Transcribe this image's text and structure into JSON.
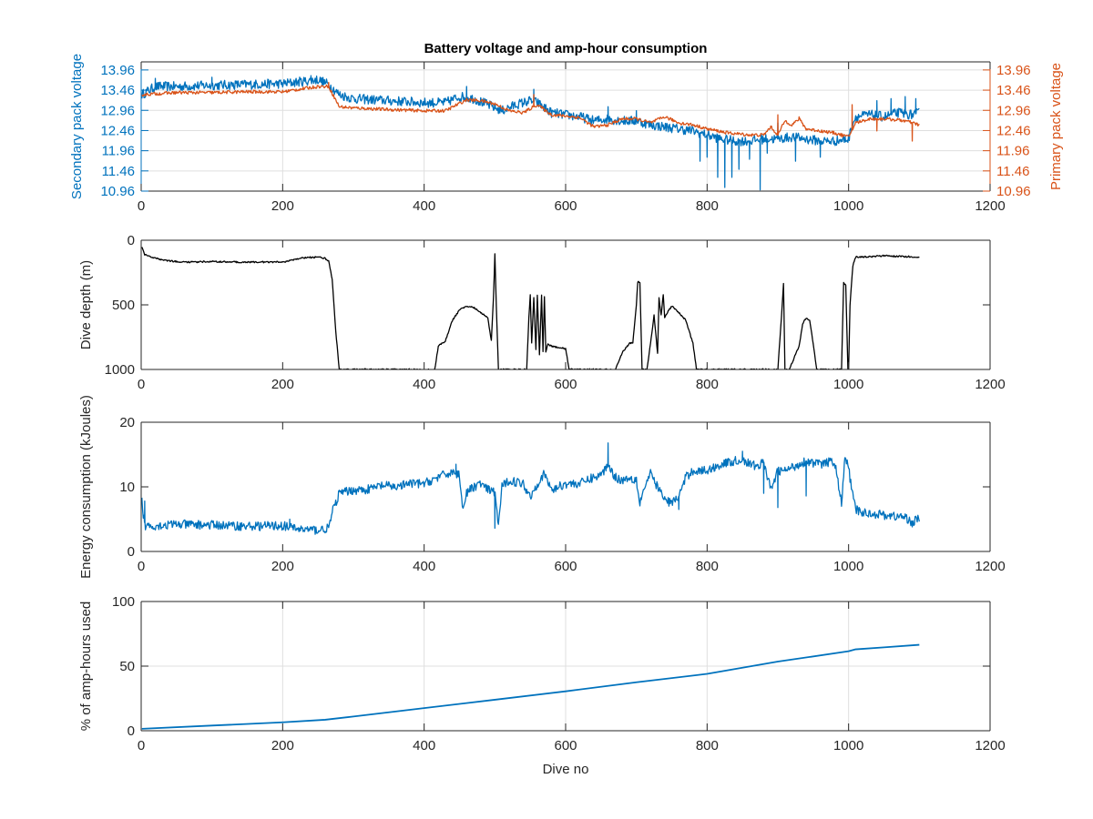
{
  "chart_data": [
    {
      "type": "line",
      "title": "Battery voltage and amp-hour consumption",
      "xlabel": "",
      "ylabel": "Secondary pack voltage",
      "ylabel_right": "Primary pack voltage",
      "xlim": [
        0,
        1200
      ],
      "ylim": [
        10.96,
        14.16
      ],
      "ylim_right": [
        10.96,
        14.16
      ],
      "xticks": [
        "0",
        "200",
        "400",
        "600",
        "800",
        "1000",
        "1200"
      ],
      "yticks": [
        "10.96",
        "11.46",
        "11.96",
        "12.46",
        "12.96",
        "13.46",
        "13.96"
      ],
      "yticks_right": [
        "10.96",
        "11.46",
        "11.96",
        "12.46",
        "12.96",
        "13.46",
        "13.96"
      ],
      "grid": true,
      "colors": {
        "left": "#0072BD",
        "right": "#D95319"
      },
      "series": [
        {
          "color": "#0072BD",
          "axis": "left",
          "x": [
            1,
            20,
            50,
            100,
            150,
            200,
            230,
            250,
            265,
            280,
            300,
            350,
            400,
            430,
            450,
            470,
            490,
            510,
            530,
            550,
            560,
            580,
            600,
            620,
            640,
            660,
            680,
            700,
            720,
            740,
            760,
            780,
            800,
            820,
            840,
            860,
            880,
            900,
            920,
            940,
            960,
            980,
            1000,
            1005,
            1010,
            1030,
            1050,
            1070,
            1090,
            1100
          ],
          "y": [
            13.35,
            13.55,
            13.55,
            13.58,
            13.6,
            13.62,
            13.68,
            13.72,
            13.6,
            13.35,
            13.25,
            13.2,
            13.15,
            13.15,
            13.3,
            13.25,
            13.1,
            12.95,
            13.1,
            13.2,
            13.15,
            12.9,
            12.85,
            12.8,
            12.7,
            12.75,
            12.7,
            12.7,
            12.6,
            12.55,
            12.5,
            12.45,
            12.35,
            12.25,
            12.2,
            12.2,
            12.25,
            12.25,
            12.3,
            12.25,
            12.2,
            12.2,
            12.25,
            12.6,
            12.8,
            12.85,
            12.8,
            12.9,
            12.85,
            12.9
          ],
          "noise": 0.12,
          "spikes": [
            [
              20,
              13.75
            ],
            [
              100,
              13.78
            ],
            [
              240,
              13.82
            ],
            [
              460,
              13.55
            ],
            [
              555,
              13.48
            ],
            [
              660,
              13.05
            ],
            [
              700,
              12.95
            ],
            [
              790,
              11.7
            ],
            [
              800,
              11.8
            ],
            [
              815,
              11.3
            ],
            [
              825,
              11.05
            ],
            [
              835,
              11.3
            ],
            [
              845,
              11.5
            ],
            [
              860,
              11.75
            ],
            [
              875,
              10.99
            ],
            [
              885,
              11.9
            ],
            [
              900,
              12.65
            ],
            [
              925,
              11.7
            ],
            [
              960,
              11.8
            ],
            [
              1040,
              13.2
            ],
            [
              1060,
              13.25
            ],
            [
              1080,
              13.3
            ],
            [
              1095,
              13.25
            ]
          ]
        },
        {
          "color": "#D95319",
          "axis": "right",
          "x": [
            1,
            50,
            100,
            150,
            200,
            250,
            265,
            280,
            300,
            350,
            400,
            430,
            460,
            480,
            500,
            520,
            540,
            560,
            580,
            600,
            620,
            640,
            660,
            680,
            700,
            720,
            740,
            760,
            780,
            800,
            830,
            860,
            880,
            890,
            900,
            910,
            920,
            930,
            940,
            960,
            980,
            1000,
            1010,
            1030,
            1050,
            1070,
            1080,
            1090,
            1100
          ],
          "y": [
            13.35,
            13.4,
            13.4,
            13.42,
            13.42,
            13.55,
            13.55,
            13.05,
            13.02,
            12.98,
            12.95,
            12.95,
            13.22,
            13.2,
            13.12,
            12.95,
            12.9,
            13.1,
            12.85,
            12.82,
            12.78,
            12.55,
            12.6,
            12.75,
            12.75,
            12.65,
            12.8,
            12.65,
            12.6,
            12.5,
            12.4,
            12.35,
            12.35,
            12.55,
            12.35,
            12.7,
            12.6,
            12.75,
            12.5,
            12.45,
            12.4,
            12.3,
            12.65,
            12.75,
            12.75,
            12.72,
            12.7,
            12.65,
            12.6
          ],
          "noise": 0.04,
          "spikes": [
            [
              265,
              13.65
            ],
            [
              555,
              13.35
            ],
            [
              900,
              12.85
            ],
            [
              930,
              12.8
            ],
            [
              1005,
              13.1
            ],
            [
              1040,
              12.45
            ],
            [
              1090,
              12.2
            ]
          ]
        }
      ]
    },
    {
      "type": "line",
      "title": "",
      "xlabel": "",
      "ylabel": "Dive depth (m)",
      "xlim": [
        0,
        1200
      ],
      "ylim": [
        0,
        1000
      ],
      "y_reversed": true,
      "xticks": [
        "0",
        "200",
        "400",
        "600",
        "800",
        "1000",
        "1200"
      ],
      "yticks": [
        "0",
        "500",
        "1000"
      ],
      "grid": false,
      "series": [
        {
          "color": "#000000",
          "x": [
            1,
            5,
            20,
            40,
            60,
            100,
            150,
            200,
            230,
            250,
            260,
            265,
            270,
            275,
            280,
            300,
            350,
            400,
            415,
            420,
            430,
            440,
            450,
            460,
            470,
            480,
            490,
            495,
            498,
            500,
            502,
            505,
            510,
            515,
            530,
            545,
            548,
            550,
            552,
            555,
            558,
            560,
            563,
            566,
            568,
            570,
            572,
            575,
            580,
            590,
            600,
            605,
            610,
            620,
            650,
            670,
            680,
            690,
            695,
            700,
            702,
            705,
            708,
            710,
            715,
            720,
            725,
            730,
            732,
            735,
            738,
            740,
            745,
            750,
            760,
            770,
            780,
            785,
            790,
            800,
            850,
            900,
            905,
            908,
            910,
            913,
            916,
            930,
            935,
            940,
            945,
            950,
            955,
            960,
            980,
            990,
            993,
            996,
            999,
            1000,
            1002,
            1006,
            1010,
            1020,
            1050,
            1100
          ],
          "y": [
            50,
            110,
            140,
            160,
            170,
            165,
            170,
            168,
            135,
            130,
            140,
            160,
            300,
            700,
            1000,
            1000,
            1000,
            1000,
            1000,
            820,
            780,
            620,
            540,
            510,
            520,
            560,
            600,
            780,
            450,
            110,
            500,
            1000,
            1000,
            1000,
            1000,
            1000,
            600,
            420,
            800,
            440,
            850,
            420,
            880,
            430,
            860,
            440,
            860,
            800,
            820,
            830,
            840,
            1000,
            1000,
            1000,
            1000,
            1000,
            870,
            800,
            790,
            500,
            320,
            330,
            1000,
            1000,
            1000,
            800,
            580,
            880,
            450,
            580,
            420,
            600,
            550,
            510,
            560,
            620,
            800,
            1000,
            1000,
            1000,
            1000,
            1000,
            600,
            330,
            1000,
            1000,
            1000,
            820,
            650,
            600,
            620,
            800,
            1000,
            1000,
            1000,
            1000,
            330,
            350,
            1000,
            1000,
            500,
            200,
            130,
            130,
            120,
            130
          ],
          "noise": 6
        }
      ]
    },
    {
      "type": "line",
      "title": "",
      "xlabel": "",
      "ylabel": "Energy consumption (kJoules)",
      "xlim": [
        0,
        1200
      ],
      "ylim": [
        0,
        20
      ],
      "xticks": [
        "0",
        "200",
        "400",
        "600",
        "800",
        "1000",
        "1200"
      ],
      "yticks": [
        "0",
        "10",
        "20"
      ],
      "grid": false,
      "series": [
        {
          "color": "#0072BD",
          "x": [
            1,
            3,
            6,
            10,
            20,
            50,
            100,
            150,
            200,
            220,
            250,
            265,
            270,
            280,
            300,
            320,
            340,
            360,
            380,
            400,
            420,
            440,
            450,
            455,
            460,
            470,
            480,
            490,
            500,
            505,
            510,
            520,
            540,
            550,
            560,
            570,
            580,
            600,
            620,
            640,
            650,
            660,
            670,
            680,
            690,
            700,
            705,
            710,
            720,
            740,
            750,
            760,
            770,
            780,
            790,
            800,
            810,
            820,
            840,
            850,
            860,
            870,
            880,
            890,
            900,
            910,
            920,
            930,
            940,
            960,
            980,
            990,
            995,
            1000,
            1005,
            1010,
            1020,
            1040,
            1060,
            1080,
            1090,
            1100
          ],
          "y": [
            8,
            5.5,
            4,
            4,
            4,
            4.2,
            4.1,
            3.9,
            4.0,
            3.5,
            3.3,
            3.6,
            6,
            9,
            9.5,
            9.6,
            10.2,
            10,
            10.5,
            10.5,
            11.5,
            12.3,
            11.8,
            6.5,
            9,
            10,
            10.5,
            9.5,
            9.2,
            4,
            10,
            11,
            10.5,
            8.5,
            10.5,
            12,
            9.5,
            10.5,
            10.5,
            11.5,
            11.8,
            13.5,
            11.5,
            11,
            11.5,
            11,
            7.5,
            9.5,
            12,
            8,
            7.5,
            8.5,
            11.5,
            12.5,
            12.5,
            12.5,
            13,
            13.5,
            14,
            14.2,
            13.5,
            13.2,
            13.8,
            9.5,
            12.5,
            12.5,
            13,
            13.5,
            14,
            13.5,
            14,
            7.5,
            14.5,
            13,
            9,
            6.5,
            6,
            5.8,
            5.5,
            5.3,
            4.5,
            5.2
          ],
          "noise": 0.7,
          "spikes": [
            [
              5,
              7.8
            ],
            [
              210,
              5
            ],
            [
              445,
              13.5
            ],
            [
              500,
              3.6
            ],
            [
              660,
              16.8
            ],
            [
              700,
              11.5
            ],
            [
              760,
              6.5
            ],
            [
              850,
              15.5
            ],
            [
              880,
              9
            ],
            [
              900,
              6.8
            ],
            [
              940,
              8.6
            ],
            [
              990,
              7
            ],
            [
              995,
              14.5
            ],
            [
              1090,
              3.8
            ]
          ]
        }
      ]
    },
    {
      "type": "line",
      "title": "",
      "xlabel": "Dive no",
      "ylabel": "% of amp-hours used",
      "xlim": [
        0,
        1200
      ],
      "ylim": [
        0,
        100
      ],
      "xticks": [
        "0",
        "200",
        "400",
        "600",
        "800",
        "1000",
        "1200"
      ],
      "yticks": [
        "0",
        "50",
        "100"
      ],
      "grid": true,
      "series": [
        {
          "color": "#0072BD",
          "x": [
            1,
            100,
            200,
            260,
            300,
            400,
            500,
            600,
            700,
            800,
            900,
            1000,
            1010,
            1050,
            1100
          ],
          "y": [
            1.5,
            4,
            6.5,
            8.5,
            11,
            17.5,
            24,
            30.5,
            37.5,
            44,
            53.5,
            61.5,
            63,
            64.5,
            66.5
          ]
        }
      ]
    }
  ]
}
